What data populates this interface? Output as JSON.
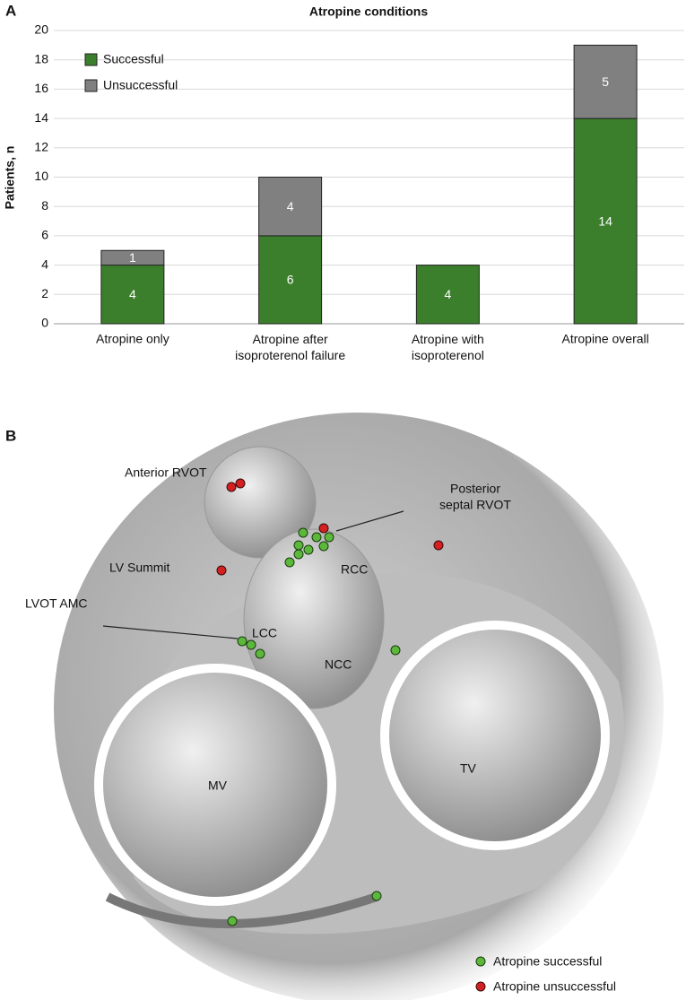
{
  "panel_labels": [
    "A",
    "B"
  ],
  "chart_data": {
    "type": "stacked_bar",
    "title": "Atropine conditions",
    "y_label": "Patients, n",
    "categories": [
      "Atropine only",
      "Atropine after isoproterenol failure",
      "Atropine with isoproterenol",
      "Atropine overall"
    ],
    "series": [
      {
        "name": "Successful",
        "color": "#3b7f2c",
        "values": [
          4,
          6,
          4,
          14
        ]
      },
      {
        "name": "Unsuccessful",
        "color": "#808080",
        "values": [
          1,
          4,
          null,
          5
        ]
      }
    ],
    "ylim": [
      0,
      20
    ],
    "yticks": [
      0,
      2,
      4,
      6,
      8,
      10,
      12,
      14,
      16,
      18,
      20
    ],
    "grid": true,
    "legend": "top-left"
  },
  "diagram": {
    "labels": [
      "Anterior RVOT",
      "LV Summit",
      "LVOT AMC",
      "RCC",
      "LCC",
      "NCC",
      "MV",
      "TV"
    ],
    "posterior_label": [
      "Posterior",
      "septal RVOT"
    ],
    "legend": [
      {
        "name": "Atropine successful",
        "color": "#5cb83a"
      },
      {
        "name": "Atropine unsuccessful",
        "color": "#d42020"
      }
    ]
  }
}
